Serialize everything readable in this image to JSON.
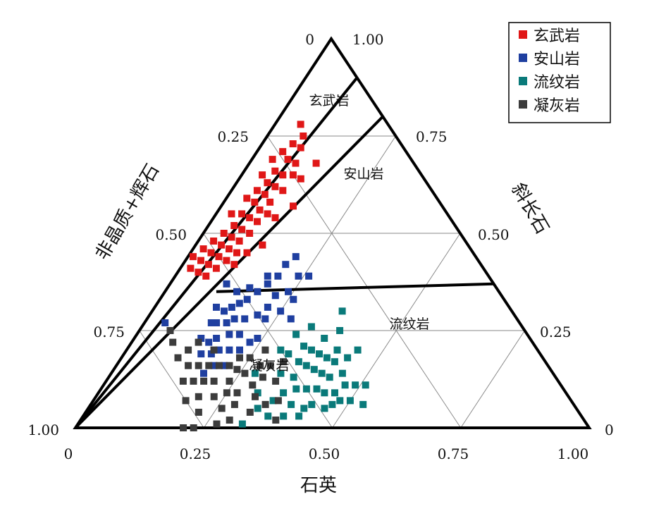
{
  "chart_data": {
    "type": "scatter",
    "subtype": "ternary",
    "axes": {
      "bottom": {
        "title": "石英",
        "ticks": [
          "0",
          "0.25",
          "0.50",
          "0.75",
          "1.00"
        ]
      },
      "left": {
        "title": "非晶质+辉石",
        "ticks": [
          "0",
          "0.25",
          "0.50",
          "0.75",
          "1.00"
        ]
      },
      "right": {
        "title": "斜长石",
        "ticks": [
          "1.00",
          "0.75",
          "0.50",
          "0.25",
          "0"
        ]
      }
    },
    "grid": true,
    "legend_position": "top-right",
    "region_labels": [
      "玄武岩",
      "安山岩",
      "流纹岩",
      "凝灰岩"
    ],
    "boundaries": [
      {
        "from": {
          "quartz": 0,
          "amorphous": 1,
          "plagioclase": 0
        },
        "to": {
          "quartz": 0.1,
          "amorphous": 0,
          "plagioclase": 0.9
        }
      },
      {
        "from": {
          "quartz": 0,
          "amorphous": 1,
          "plagioclase": 0
        },
        "to": {
          "quartz": 0.2,
          "amorphous": 0,
          "plagioclase": 0.8
        }
      },
      {
        "from": {
          "quartz": 0.1,
          "amorphous": 0.55,
          "plagioclase": 0.35
        },
        "to": {
          "quartz": 0.63,
          "amorphous": 0,
          "plagioclase": 0.37
        }
      }
    ],
    "series": [
      {
        "name": "玄武岩",
        "color": "#e01717",
        "points": [
          [
            0.05,
            0.17,
            0.78
          ],
          [
            0.07,
            0.18,
            0.75
          ],
          [
            0.06,
            0.21,
            0.73
          ],
          [
            0.08,
            0.2,
            0.72
          ],
          [
            0.05,
            0.24,
            0.71
          ],
          [
            0.07,
            0.24,
            0.69
          ],
          [
            0.09,
            0.23,
            0.68
          ],
          [
            0.04,
            0.27,
            0.69
          ],
          [
            0.06,
            0.28,
            0.66
          ],
          [
            0.08,
            0.27,
            0.65
          ],
          [
            0.1,
            0.25,
            0.65
          ],
          [
            0.04,
            0.31,
            0.65
          ],
          [
            0.06,
            0.31,
            0.63
          ],
          [
            0.08,
            0.3,
            0.62
          ],
          [
            0.1,
            0.29,
            0.61
          ],
          [
            0.05,
            0.34,
            0.61
          ],
          [
            0.07,
            0.33,
            0.6
          ],
          [
            0.09,
            0.33,
            0.58
          ],
          [
            0.04,
            0.37,
            0.59
          ],
          [
            0.06,
            0.36,
            0.58
          ],
          [
            0.08,
            0.36,
            0.56
          ],
          [
            0.1,
            0.35,
            0.55
          ],
          [
            0.05,
            0.4,
            0.55
          ],
          [
            0.07,
            0.39,
            0.54
          ],
          [
            0.09,
            0.38,
            0.53
          ],
          [
            0.03,
            0.42,
            0.55
          ],
          [
            0.05,
            0.43,
            0.52
          ],
          [
            0.07,
            0.42,
            0.51
          ],
          [
            0.09,
            0.41,
            0.5
          ],
          [
            0.04,
            0.46,
            0.5
          ],
          [
            0.06,
            0.45,
            0.49
          ],
          [
            0.08,
            0.44,
            0.48
          ],
          [
            0.03,
            0.49,
            0.48
          ],
          [
            0.05,
            0.48,
            0.47
          ],
          [
            0.07,
            0.47,
            0.46
          ],
          [
            0.09,
            0.46,
            0.45
          ],
          [
            0.02,
            0.52,
            0.46
          ],
          [
            0.04,
            0.51,
            0.45
          ],
          [
            0.06,
            0.5,
            0.44
          ],
          [
            0.08,
            0.49,
            0.43
          ],
          [
            0.01,
            0.55,
            0.44
          ],
          [
            0.03,
            0.54,
            0.43
          ],
          [
            0.05,
            0.53,
            0.42
          ],
          [
            0.07,
            0.52,
            0.41
          ],
          [
            0.02,
            0.57,
            0.41
          ],
          [
            0.04,
            0.56,
            0.4
          ],
          [
            0.06,
            0.55,
            0.39
          ],
          [
            0.13,
            0.19,
            0.68
          ],
          [
            0.12,
            0.24,
            0.64
          ],
          [
            0.14,
            0.29,
            0.57
          ],
          [
            0.12,
            0.34,
            0.54
          ],
          [
            0.13,
            0.4,
            0.47
          ],
          [
            0.11,
            0.44,
            0.45
          ],
          [
            0.1,
            0.48,
            0.42
          ]
        ]
      },
      {
        "name": "安山岩",
        "color": "#1f3fa0",
        "points": [
          [
            0.2,
            0.38,
            0.42
          ],
          [
            0.2,
            0.41,
            0.39
          ],
          [
            0.19,
            0.44,
            0.37
          ],
          [
            0.18,
            0.47,
            0.35
          ],
          [
            0.17,
            0.5,
            0.33
          ],
          [
            0.16,
            0.52,
            0.32
          ],
          [
            0.15,
            0.54,
            0.31
          ],
          [
            0.17,
            0.55,
            0.28
          ],
          [
            0.19,
            0.53,
            0.28
          ],
          [
            0.21,
            0.5,
            0.29
          ],
          [
            0.22,
            0.47,
            0.31
          ],
          [
            0.22,
            0.44,
            0.34
          ],
          [
            0.16,
            0.57,
            0.27
          ],
          [
            0.18,
            0.58,
            0.24
          ],
          [
            0.2,
            0.56,
            0.24
          ],
          [
            0.14,
            0.59,
            0.27
          ],
          [
            0.16,
            0.61,
            0.23
          ],
          [
            0.18,
            0.62,
            0.2
          ],
          [
            0.15,
            0.63,
            0.22
          ],
          [
            0.13,
            0.6,
            0.27
          ],
          [
            0.14,
            0.56,
            0.3
          ],
          [
            0.2,
            0.6,
            0.2
          ],
          [
            0.22,
            0.58,
            0.2
          ],
          [
            0.17,
            0.64,
            0.19
          ],
          [
            0.24,
            0.53,
            0.23
          ],
          [
            0.23,
            0.49,
            0.28
          ],
          [
            0.25,
            0.45,
            0.3
          ],
          [
            0.24,
            0.41,
            0.35
          ],
          [
            0.21,
            0.35,
            0.44
          ],
          [
            0.26,
            0.41,
            0.33
          ],
          [
            0.23,
            0.55,
            0.22
          ],
          [
            0.19,
            0.65,
            0.16
          ],
          [
            0.13,
            0.64,
            0.23
          ],
          [
            0.15,
            0.66,
            0.19
          ],
          [
            0.26,
            0.35,
            0.39
          ],
          [
            0.24,
            0.37,
            0.39
          ],
          [
            0.18,
            0.43,
            0.39
          ],
          [
            0.16,
            0.48,
            0.36
          ],
          [
            0.14,
            0.51,
            0.35
          ],
          [
            0.11,
            0.52,
            0.37
          ],
          [
            0.12,
            0.57,
            0.31
          ],
          [
            0.21,
            0.63,
            0.16
          ],
          [
            0.18,
            0.68,
            0.14
          ],
          [
            0.28,
            0.44,
            0.28
          ],
          [
            0.04,
            0.69,
            0.27
          ]
        ]
      },
      {
        "name": "流纹岩",
        "color": "#0a7a7a",
        "points": [
          [
            0.33,
            0.53,
            0.14
          ],
          [
            0.36,
            0.51,
            0.13
          ],
          [
            0.38,
            0.52,
            0.1
          ],
          [
            0.4,
            0.5,
            0.1
          ],
          [
            0.42,
            0.48,
            0.1
          ],
          [
            0.44,
            0.47,
            0.09
          ],
          [
            0.35,
            0.48,
            0.17
          ],
          [
            0.37,
            0.47,
            0.16
          ],
          [
            0.39,
            0.46,
            0.15
          ],
          [
            0.41,
            0.45,
            0.14
          ],
          [
            0.43,
            0.44,
            0.13
          ],
          [
            0.46,
            0.45,
            0.09
          ],
          [
            0.34,
            0.45,
            0.21
          ],
          [
            0.36,
            0.44,
            0.2
          ],
          [
            0.38,
            0.43,
            0.19
          ],
          [
            0.4,
            0.42,
            0.18
          ],
          [
            0.42,
            0.41,
            0.17
          ],
          [
            0.45,
            0.41,
            0.14
          ],
          [
            0.47,
            0.42,
            0.11
          ],
          [
            0.49,
            0.4,
            0.11
          ],
          [
            0.32,
            0.49,
            0.19
          ],
          [
            0.31,
            0.45,
            0.24
          ],
          [
            0.39,
            0.55,
            0.06
          ],
          [
            0.43,
            0.51,
            0.06
          ],
          [
            0.36,
            0.55,
            0.09
          ],
          [
            0.46,
            0.49,
            0.05
          ],
          [
            0.48,
            0.45,
            0.07
          ],
          [
            0.5,
            0.43,
            0.07
          ],
          [
            0.41,
            0.39,
            0.2
          ],
          [
            0.44,
            0.38,
            0.18
          ],
          [
            0.37,
            0.4,
            0.23
          ],
          [
            0.33,
            0.41,
            0.26
          ],
          [
            0.35,
            0.58,
            0.07
          ],
          [
            0.45,
            0.35,
            0.2
          ],
          [
            0.51,
            0.38,
            0.11
          ],
          [
            0.3,
            0.5,
            0.2
          ],
          [
            0.42,
            0.53,
            0.05
          ],
          [
            0.47,
            0.47,
            0.06
          ],
          [
            0.53,
            0.41,
            0.06
          ],
          [
            0.39,
            0.36,
            0.25
          ],
          [
            0.36,
            0.61,
            0.03
          ],
          [
            0.33,
            0.62,
            0.05
          ],
          [
            0.42,
            0.55,
            0.03
          ],
          [
            0.39,
            0.58,
            0.03
          ],
          [
            0.32,
            0.67,
            0.01
          ],
          [
            0.37,
            0.33,
            0.3
          ],
          [
            0.31,
            0.6,
            0.09
          ],
          [
            0.28,
            0.58,
            0.14
          ]
        ]
      },
      {
        "name": "凝灰岩",
        "color": "#3c3c3c",
        "points": [
          [
            0.26,
            0.6,
            0.14
          ],
          [
            0.28,
            0.56,
            0.16
          ],
          [
            0.25,
            0.57,
            0.18
          ],
          [
            0.23,
            0.59,
            0.18
          ],
          [
            0.22,
            0.62,
            0.16
          ],
          [
            0.24,
            0.64,
            0.12
          ],
          [
            0.27,
            0.64,
            0.09
          ],
          [
            0.29,
            0.6,
            0.11
          ],
          [
            0.3,
            0.57,
            0.13
          ],
          [
            0.2,
            0.64,
            0.16
          ],
          [
            0.21,
            0.67,
            0.12
          ],
          [
            0.25,
            0.66,
            0.09
          ],
          [
            0.28,
            0.66,
            0.06
          ],
          [
            0.18,
            0.66,
            0.16
          ],
          [
            0.19,
            0.69,
            0.12
          ],
          [
            0.23,
            0.69,
            0.08
          ],
          [
            0.26,
            0.69,
            0.05
          ],
          [
            0.31,
            0.61,
            0.08
          ],
          [
            0.32,
            0.64,
            0.04
          ],
          [
            0.16,
            0.68,
            0.16
          ],
          [
            0.17,
            0.71,
            0.12
          ],
          [
            0.2,
            0.72,
            0.08
          ],
          [
            0.14,
            0.7,
            0.16
          ],
          [
            0.22,
            0.74,
            0.04
          ],
          [
            0.27,
            0.72,
            0.01
          ],
          [
            0.29,
            0.69,
            0.02
          ],
          [
            0.34,
            0.6,
            0.06
          ],
          [
            0.33,
            0.55,
            0.12
          ],
          [
            0.36,
            0.57,
            0.07
          ],
          [
            0.12,
            0.68,
            0.2
          ],
          [
            0.11,
            0.71,
            0.18
          ],
          [
            0.15,
            0.73,
            0.12
          ],
          [
            0.18,
            0.75,
            0.07
          ],
          [
            0.23,
            0.77,
            0.0
          ],
          [
            0.21,
            0.79,
            0.0
          ],
          [
            0.06,
            0.69,
            0.25
          ],
          [
            0.08,
            0.7,
            0.22
          ],
          [
            0.3,
            0.54,
            0.16
          ],
          [
            0.27,
            0.53,
            0.2
          ],
          [
            0.24,
            0.61,
            0.15
          ],
          [
            0.13,
            0.65,
            0.22
          ],
          [
            0.38,
            0.6,
            0.02
          ],
          [
            0.32,
            0.51,
            0.17
          ],
          [
            0.17,
            0.63,
            0.2
          ]
        ]
      }
    ]
  }
}
